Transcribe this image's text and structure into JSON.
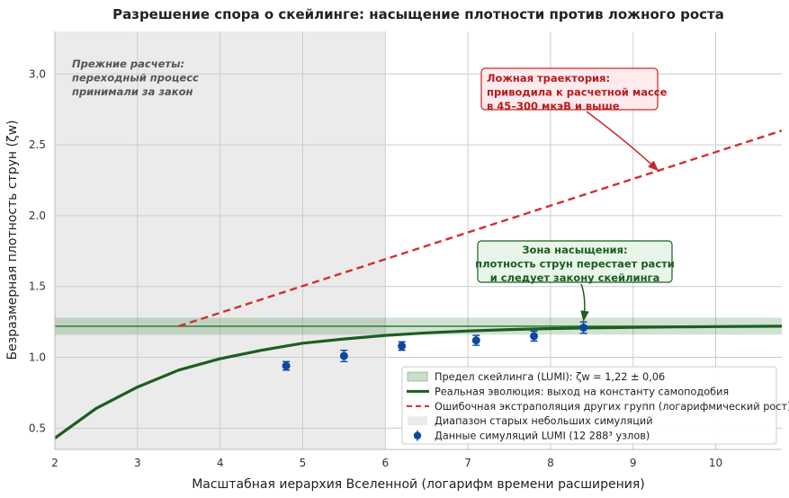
{
  "chart_data": {
    "type": "line",
    "title": "Разрешение спора о скейлинге: насыщение плотности против ложного роста",
    "xlabel": "Масштабная иерархия Вселенной (логарифм времени расширения)",
    "ylabel": "Безразмерная плотность струн (ζw)",
    "xlim": [
      2,
      10.8
    ],
    "ylim": [
      0.35,
      3.3
    ],
    "x_ticks": [
      "2",
      "3",
      "4",
      "5",
      "6",
      "7",
      "8",
      "9",
      "10"
    ],
    "y_ticks": [
      "0.5",
      "1.0",
      "1.5",
      "2.0",
      "2.5",
      "3.0"
    ],
    "grid": true,
    "legend_position": "lower-right",
    "shaded_region": {
      "x_range": [
        2,
        6
      ],
      "name": "Диапазон старых небольших симуляций",
      "color": "#ebebeb"
    },
    "scaling_limit": {
      "name": "Предел скейлинга (LUMI): ζw = 1,22 ± 0,06",
      "value": 1.22,
      "uncertainty": 0.06,
      "color": "#2e7d32"
    },
    "series": [
      {
        "name": "Реальная эволюция: выход на константу самоподобия",
        "style": "solid",
        "color": "#1b5e20",
        "x": [
          2.0,
          2.5,
          3.0,
          3.5,
          4.0,
          4.5,
          5.0,
          5.5,
          6.0,
          6.5,
          7.0,
          7.5,
          8.0,
          8.5,
          9.0,
          9.5,
          10.0,
          10.8
        ],
        "y": [
          0.43,
          0.64,
          0.79,
          0.91,
          0.99,
          1.05,
          1.1,
          1.13,
          1.155,
          1.173,
          1.186,
          1.196,
          1.203,
          1.208,
          1.212,
          1.215,
          1.217,
          1.22
        ]
      },
      {
        "name": "Ошибочная экстраполяция других групп (логарифмический рост)",
        "style": "dashed",
        "color": "#d32f2f",
        "x": [
          3.5,
          10.8
        ],
        "y": [
          1.22,
          2.6
        ]
      }
    ],
    "points": {
      "name": "Данные симуляций LUMI (12 288³ узлов)",
      "color": "#0d47a1",
      "x": [
        4.8,
        5.5,
        6.2,
        7.1,
        7.8,
        8.4
      ],
      "y": [
        0.94,
        1.01,
        1.08,
        1.12,
        1.15,
        1.21
      ],
      "err": [
        0.03,
        0.04,
        0.03,
        0.035,
        0.035,
        0.04
      ]
    },
    "annotations": [
      {
        "id": "old",
        "lines": [
          "Прежние расчеты:",
          "переходный процесс",
          "принимали за закон"
        ],
        "color": "#555555"
      },
      {
        "id": "false",
        "lines": [
          "Ложная траектория:",
          "приводила к расчетной массе",
          "в 45–300 мкэВ и выше"
        ],
        "color": "#b71c1c",
        "box_fill": "#ffebee",
        "box_stroke": "#c62828",
        "arrow_to": [
          9.3,
          2.32
        ]
      },
      {
        "id": "sat",
        "lines": [
          "Зона насыщения:",
          "плотность струн перестает расти",
          "и следует закону скейлинга"
        ],
        "color": "#1b5e20",
        "box_fill": "#e8f5e9",
        "box_stroke": "#1b5e20",
        "arrow_to": [
          8.4,
          1.26
        ]
      }
    ]
  }
}
